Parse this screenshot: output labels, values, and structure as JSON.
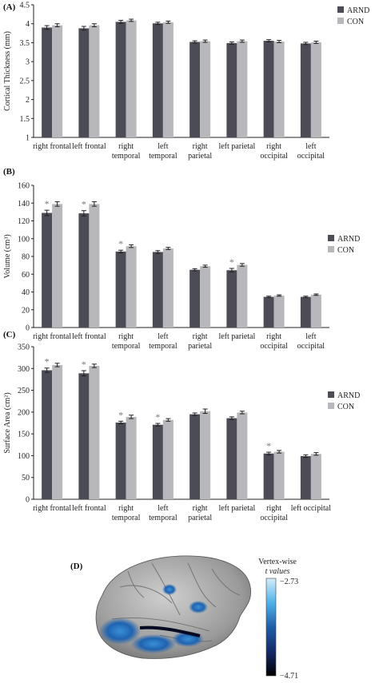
{
  "colors": {
    "arnd": "#4c4c56",
    "con": "#b8b8bc",
    "err": "#222222",
    "star": "#7a7a7a"
  },
  "chart_data": [
    {
      "type": "bar",
      "panel_label": "(A)",
      "ylabel": "Cortical Thickness (mm)",
      "ylim": [
        1,
        4.5
      ],
      "yticks": [
        "1",
        "1.5",
        "2",
        "2.5",
        "3",
        "3.5",
        "4",
        "4.5"
      ],
      "categories": [
        "right frontal",
        "left frontal",
        "right temporal",
        "left temporal",
        "right parietal",
        "left parietal",
        "right occipital",
        "left occipital"
      ],
      "series": [
        {
          "name": "ARND",
          "values": [
            3.9,
            3.88,
            4.05,
            4.01,
            3.52,
            3.49,
            3.55,
            3.48
          ],
          "errors": [
            0.05,
            0.05,
            0.04,
            0.03,
            0.03,
            0.03,
            0.03,
            0.03
          ]
        },
        {
          "name": "CON",
          "values": [
            3.96,
            3.96,
            4.09,
            4.04,
            3.54,
            3.54,
            3.53,
            3.51
          ],
          "errors": [
            0.04,
            0.04,
            0.03,
            0.03,
            0.03,
            0.03,
            0.03,
            0.03
          ]
        }
      ],
      "significant": [],
      "legend": "top-right"
    },
    {
      "type": "bar",
      "panel_label": "(B)",
      "ylabel": "Volume (cm³)",
      "ylim": [
        0,
        160
      ],
      "yticks": [
        "0",
        "20",
        "40",
        "60",
        "80",
        "100",
        "120",
        "140",
        "160"
      ],
      "categories": [
        "right frontal",
        "left frontal",
        "right temporal",
        "left temporal",
        "right parietal",
        "left parietal",
        "right occipital",
        "left occipital"
      ],
      "series": [
        {
          "name": "ARND",
          "values": [
            129,
            128.5,
            85.5,
            85,
            65,
            64.5,
            34.5,
            34.5
          ],
          "errors": [
            3,
            3,
            1.5,
            1.5,
            1.2,
            2,
            0.8,
            0.8
          ]
        },
        {
          "name": "CON",
          "values": [
            139,
            139,
            91.5,
            89,
            69,
            70.5,
            36,
            37
          ],
          "errors": [
            2.5,
            2.5,
            1.5,
            1.2,
            1.2,
            1.5,
            0.8,
            0.8
          ]
        }
      ],
      "significant": [
        0,
        1,
        2,
        5
      ],
      "legend": "right"
    },
    {
      "type": "bar",
      "panel_label": "(C)",
      "ylabel": "Surface Area (cm²)",
      "ylim": [
        0,
        350
      ],
      "yticks": [
        "0",
        "50",
        "100",
        "150",
        "200",
        "250",
        "300",
        "350"
      ],
      "categories": [
        "right frontal",
        "left frontal",
        "right temporal",
        "left temporal",
        "right parietal",
        "left parietal",
        "right occipital",
        "left occipital"
      ],
      "series": [
        {
          "name": "ARND",
          "values": [
            296,
            289,
            176,
            171,
            195,
            186,
            105,
            99
          ],
          "errors": [
            5,
            6,
            3,
            3,
            3,
            3,
            3,
            3
          ]
        },
        {
          "name": "CON",
          "values": [
            308,
            306,
            189,
            182,
            202,
            199,
            109,
            104
          ],
          "errors": [
            4,
            4,
            4,
            3,
            5,
            3,
            3,
            3
          ]
        }
      ],
      "significant": [
        0,
        1,
        2,
        3,
        6
      ],
      "legend": "right"
    }
  ],
  "panel_d": {
    "label": "(D)",
    "colorbar_title_line1": "Vertex-wise",
    "colorbar_title_line2": "t values",
    "colorbar_max": "−2.73",
    "colorbar_min": "−4.71"
  }
}
